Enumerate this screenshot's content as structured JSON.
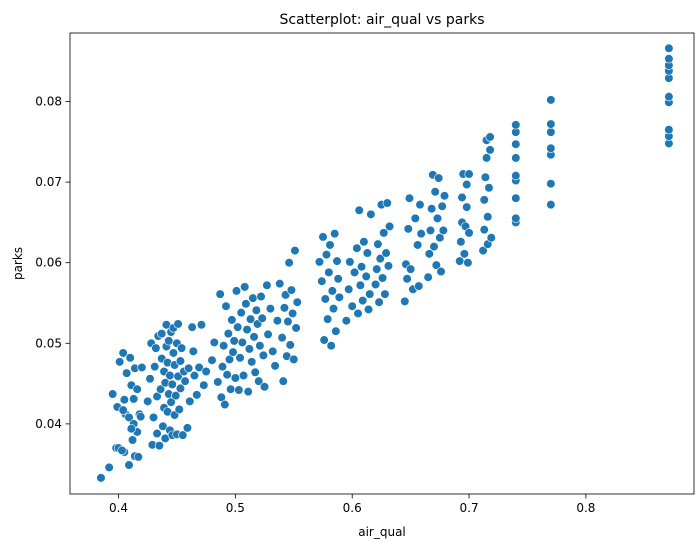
{
  "chart_data": {
    "type": "scatter",
    "title": "Scatterplot: air_qual vs parks",
    "xlabel": "air_qual",
    "ylabel": "parks",
    "xlim": [
      0.3585,
      0.8925
    ],
    "ylim": [
      0.0313,
      0.0885
    ],
    "xticks": [
      {
        "value": 0.4,
        "label": "0.4"
      },
      {
        "value": 0.5,
        "label": "0.5"
      },
      {
        "value": 0.6,
        "label": "0.6"
      },
      {
        "value": 0.7,
        "label": "0.7"
      },
      {
        "value": 0.8,
        "label": "0.8"
      }
    ],
    "yticks": [
      {
        "value": 0.04,
        "label": "0.04"
      },
      {
        "value": 0.05,
        "label": "0.05"
      },
      {
        "value": 0.06,
        "label": "0.06"
      },
      {
        "value": 0.07,
        "label": "0.07"
      },
      {
        "value": 0.08,
        "label": "0.08"
      }
    ],
    "grid": false,
    "marker_color": "#1f77b4",
    "marker_edge": "#ffffff",
    "points": [
      [
        0.385,
        0.0333
      ],
      [
        0.392,
        0.0346
      ],
      [
        0.398,
        0.037
      ],
      [
        0.405,
        0.0365
      ],
      [
        0.409,
        0.0349
      ],
      [
        0.414,
        0.036
      ],
      [
        0.395,
        0.0437
      ],
      [
        0.399,
        0.0421
      ],
      [
        0.401,
        0.0477
      ],
      [
        0.404,
        0.0488
      ],
      [
        0.405,
        0.043
      ],
      [
        0.406,
        0.0412
      ],
      [
        0.407,
        0.0463
      ],
      [
        0.409,
        0.0408
      ],
      [
        0.41,
        0.0482
      ],
      [
        0.411,
        0.0448
      ],
      [
        0.412,
        0.038
      ],
      [
        0.413,
        0.04
      ],
      [
        0.413,
        0.0431
      ],
      [
        0.414,
        0.0469
      ],
      [
        0.416,
        0.039
      ],
      [
        0.416,
        0.0443
      ],
      [
        0.418,
        0.0412
      ],
      [
        0.42,
        0.047
      ],
      [
        0.4,
        0.037
      ],
      [
        0.403,
        0.0367
      ],
      [
        0.404,
        0.0417
      ],
      [
        0.411,
        0.0394
      ],
      [
        0.417,
        0.0359
      ],
      [
        0.419,
        0.0409
      ],
      [
        0.425,
        0.0428
      ],
      [
        0.427,
        0.0456
      ],
      [
        0.428,
        0.05
      ],
      [
        0.429,
        0.0374
      ],
      [
        0.43,
        0.0408
      ],
      [
        0.431,
        0.0471
      ],
      [
        0.432,
        0.0494
      ],
      [
        0.433,
        0.0388
      ],
      [
        0.433,
        0.0434
      ],
      [
        0.434,
        0.0509
      ],
      [
        0.435,
        0.0373
      ],
      [
        0.436,
        0.0443
      ],
      [
        0.437,
        0.0481
      ],
      [
        0.437,
        0.0512
      ],
      [
        0.438,
        0.0397
      ],
      [
        0.439,
        0.042
      ],
      [
        0.439,
        0.0465
      ],
      [
        0.44,
        0.0382
      ],
      [
        0.44,
        0.0451
      ],
      [
        0.441,
        0.0523
      ],
      [
        0.441,
        0.0496
      ],
      [
        0.442,
        0.0415
      ],
      [
        0.442,
        0.0476
      ],
      [
        0.443,
        0.0437
      ],
      [
        0.443,
        0.0503
      ],
      [
        0.444,
        0.0392
      ],
      [
        0.444,
        0.046
      ],
      [
        0.445,
        0.0514
      ],
      [
        0.445,
        0.0427
      ],
      [
        0.446,
        0.0386
      ],
      [
        0.446,
        0.0449
      ],
      [
        0.447,
        0.0488
      ],
      [
        0.447,
        0.0519
      ],
      [
        0.448,
        0.0411
      ],
      [
        0.448,
        0.0473
      ],
      [
        0.449,
        0.0435
      ],
      [
        0.45,
        0.05
      ],
      [
        0.45,
        0.0387
      ],
      [
        0.451,
        0.0459
      ],
      [
        0.451,
        0.0524
      ],
      [
        0.452,
        0.0418
      ],
      [
        0.453,
        0.0478
      ],
      [
        0.453,
        0.0444
      ],
      [
        0.454,
        0.0494
      ],
      [
        0.455,
        0.0386
      ],
      [
        0.456,
        0.0465
      ],
      [
        0.457,
        0.0453
      ],
      [
        0.459,
        0.0395
      ],
      [
        0.46,
        0.0469
      ],
      [
        0.461,
        0.0428
      ],
      [
        0.463,
        0.052
      ],
      [
        0.464,
        0.049
      ],
      [
        0.465,
        0.046
      ],
      [
        0.467,
        0.0436
      ],
      [
        0.469,
        0.047
      ],
      [
        0.471,
        0.0523
      ],
      [
        0.473,
        0.0448
      ],
      [
        0.475,
        0.0465
      ],
      [
        0.48,
        0.0479
      ],
      [
        0.482,
        0.0501
      ],
      [
        0.485,
        0.0452
      ],
      [
        0.487,
        0.0561
      ],
      [
        0.488,
        0.0433
      ],
      [
        0.489,
        0.0471
      ],
      [
        0.49,
        0.0497
      ],
      [
        0.491,
        0.0424
      ],
      [
        0.492,
        0.0546
      ],
      [
        0.493,
        0.0461
      ],
      [
        0.494,
        0.0512
      ],
      [
        0.495,
        0.048
      ],
      [
        0.496,
        0.0443
      ],
      [
        0.497,
        0.0529
      ],
      [
        0.498,
        0.0489
      ],
      [
        0.499,
        0.0503
      ],
      [
        0.5,
        0.0457
      ],
      [
        0.501,
        0.0565
      ],
      [
        0.502,
        0.052
      ],
      [
        0.503,
        0.0442
      ],
      [
        0.504,
        0.0482
      ],
      [
        0.505,
        0.0538
      ],
      [
        0.506,
        0.0501
      ],
      [
        0.507,
        0.046
      ],
      [
        0.508,
        0.057
      ],
      [
        0.509,
        0.0549
      ],
      [
        0.51,
        0.0517
      ],
      [
        0.511,
        0.044
      ],
      [
        0.512,
        0.0493
      ],
      [
        0.513,
        0.053
      ],
      [
        0.514,
        0.0477
      ],
      [
        0.515,
        0.0556
      ],
      [
        0.516,
        0.0508
      ],
      [
        0.517,
        0.0464
      ],
      [
        0.518,
        0.0541
      ],
      [
        0.519,
        0.0524
      ],
      [
        0.52,
        0.0453
      ],
      [
        0.521,
        0.0497
      ],
      [
        0.522,
        0.0558
      ],
      [
        0.523,
        0.0531
      ],
      [
        0.524,
        0.0485
      ],
      [
        0.525,
        0.0446
      ],
      [
        0.527,
        0.0572
      ],
      [
        0.528,
        0.0511
      ],
      [
        0.53,
        0.0543
      ],
      [
        0.532,
        0.049
      ],
      [
        0.534,
        0.0472
      ],
      [
        0.536,
        0.0528
      ],
      [
        0.538,
        0.0574
      ],
      [
        0.54,
        0.0507
      ],
      [
        0.541,
        0.0453
      ],
      [
        0.542,
        0.0544
      ],
      [
        0.543,
        0.056
      ],
      [
        0.544,
        0.0484
      ],
      [
        0.545,
        0.0527
      ],
      [
        0.546,
        0.06
      ],
      [
        0.547,
        0.0498
      ],
      [
        0.548,
        0.0566
      ],
      [
        0.549,
        0.0537
      ],
      [
        0.55,
        0.048
      ],
      [
        0.551,
        0.0615
      ],
      [
        0.552,
        0.0519
      ],
      [
        0.553,
        0.0551
      ],
      [
        0.572,
        0.0601
      ],
      [
        0.574,
        0.0577
      ],
      [
        0.575,
        0.0632
      ],
      [
        0.576,
        0.0504
      ],
      [
        0.577,
        0.0555
      ],
      [
        0.578,
        0.061
      ],
      [
        0.579,
        0.053
      ],
      [
        0.58,
        0.0588
      ],
      [
        0.581,
        0.0622
      ],
      [
        0.582,
        0.0497
      ],
      [
        0.583,
        0.0565
      ],
      [
        0.584,
        0.0543
      ],
      [
        0.585,
        0.0636
      ],
      [
        0.586,
        0.0515
      ],
      [
        0.587,
        0.0602
      ],
      [
        0.588,
        0.058
      ],
      [
        0.589,
        0.0557
      ],
      [
        0.595,
        0.0528
      ],
      [
        0.597,
        0.0567
      ],
      [
        0.598,
        0.0601
      ],
      [
        0.6,
        0.0546
      ],
      [
        0.602,
        0.0588
      ],
      [
        0.604,
        0.0618
      ],
      [
        0.605,
        0.0537
      ],
      [
        0.606,
        0.0665
      ],
      [
        0.607,
        0.0572
      ],
      [
        0.608,
        0.0595
      ],
      [
        0.609,
        0.0553
      ],
      [
        0.61,
        0.0626
      ],
      [
        0.612,
        0.0583
      ],
      [
        0.613,
        0.0612
      ],
      [
        0.614,
        0.0542
      ],
      [
        0.615,
        0.0561
      ],
      [
        0.616,
        0.066
      ],
      [
        0.62,
        0.0573
      ],
      [
        0.621,
        0.0592
      ],
      [
        0.622,
        0.0623
      ],
      [
        0.623,
        0.0551
      ],
      [
        0.624,
        0.0605
      ],
      [
        0.625,
        0.0672
      ],
      [
        0.626,
        0.0581
      ],
      [
        0.627,
        0.0637
      ],
      [
        0.628,
        0.0561
      ],
      [
        0.629,
        0.0612
      ],
      [
        0.63,
        0.0674
      ],
      [
        0.631,
        0.0596
      ],
      [
        0.632,
        0.0645
      ],
      [
        0.645,
        0.0552
      ],
      [
        0.646,
        0.0598
      ],
      [
        0.647,
        0.058
      ],
      [
        0.648,
        0.0642
      ],
      [
        0.649,
        0.068
      ],
      [
        0.65,
        0.0592
      ],
      [
        0.652,
        0.0567
      ],
      [
        0.654,
        0.0655
      ],
      [
        0.656,
        0.0622
      ],
      [
        0.657,
        0.0571
      ],
      [
        0.658,
        0.0672
      ],
      [
        0.659,
        0.0636
      ],
      [
        0.665,
        0.0582
      ],
      [
        0.666,
        0.0611
      ],
      [
        0.667,
        0.064
      ],
      [
        0.668,
        0.0667
      ],
      [
        0.669,
        0.0709
      ],
      [
        0.67,
        0.062
      ],
      [
        0.671,
        0.0688
      ],
      [
        0.672,
        0.0597
      ],
      [
        0.673,
        0.0655
      ],
      [
        0.674,
        0.0705
      ],
      [
        0.675,
        0.0631
      ],
      [
        0.676,
        0.0589
      ],
      [
        0.677,
        0.067
      ],
      [
        0.678,
        0.064
      ],
      [
        0.679,
        0.0683
      ],
      [
        0.692,
        0.0602
      ],
      [
        0.693,
        0.0626
      ],
      [
        0.694,
        0.065
      ],
      [
        0.694,
        0.0681
      ],
      [
        0.695,
        0.071
      ],
      [
        0.696,
        0.0611
      ],
      [
        0.697,
        0.0645
      ],
      [
        0.698,
        0.0697
      ],
      [
        0.698,
        0.0669
      ],
      [
        0.699,
        0.06
      ],
      [
        0.7,
        0.0637
      ],
      [
        0.7,
        0.071
      ],
      [
        0.712,
        0.0615
      ],
      [
        0.713,
        0.0641
      ],
      [
        0.713,
        0.0678
      ],
      [
        0.714,
        0.0706
      ],
      [
        0.715,
        0.073
      ],
      [
        0.715,
        0.0752
      ],
      [
        0.716,
        0.0623
      ],
      [
        0.716,
        0.0657
      ],
      [
        0.717,
        0.0693
      ],
      [
        0.718,
        0.074
      ],
      [
        0.718,
        0.0756
      ],
      [
        0.719,
        0.0631
      ],
      [
        0.74,
        0.065
      ],
      [
        0.74,
        0.068
      ],
      [
        0.74,
        0.0702
      ],
      [
        0.74,
        0.073
      ],
      [
        0.74,
        0.0747
      ],
      [
        0.74,
        0.0762
      ],
      [
        0.74,
        0.0771
      ],
      [
        0.74,
        0.0655
      ],
      [
        0.74,
        0.0708
      ],
      [
        0.77,
        0.0672
      ],
      [
        0.77,
        0.0698
      ],
      [
        0.77,
        0.0734
      ],
      [
        0.77,
        0.0742
      ],
      [
        0.77,
        0.0762
      ],
      [
        0.77,
        0.0772
      ],
      [
        0.77,
        0.0802
      ],
      [
        0.871,
        0.0748
      ],
      [
        0.871,
        0.0757
      ],
      [
        0.871,
        0.0765
      ],
      [
        0.871,
        0.0799
      ],
      [
        0.871,
        0.0806
      ],
      [
        0.871,
        0.0829
      ],
      [
        0.871,
        0.0838
      ],
      [
        0.871,
        0.0845
      ],
      [
        0.871,
        0.0853
      ],
      [
        0.871,
        0.0866
      ]
    ]
  }
}
